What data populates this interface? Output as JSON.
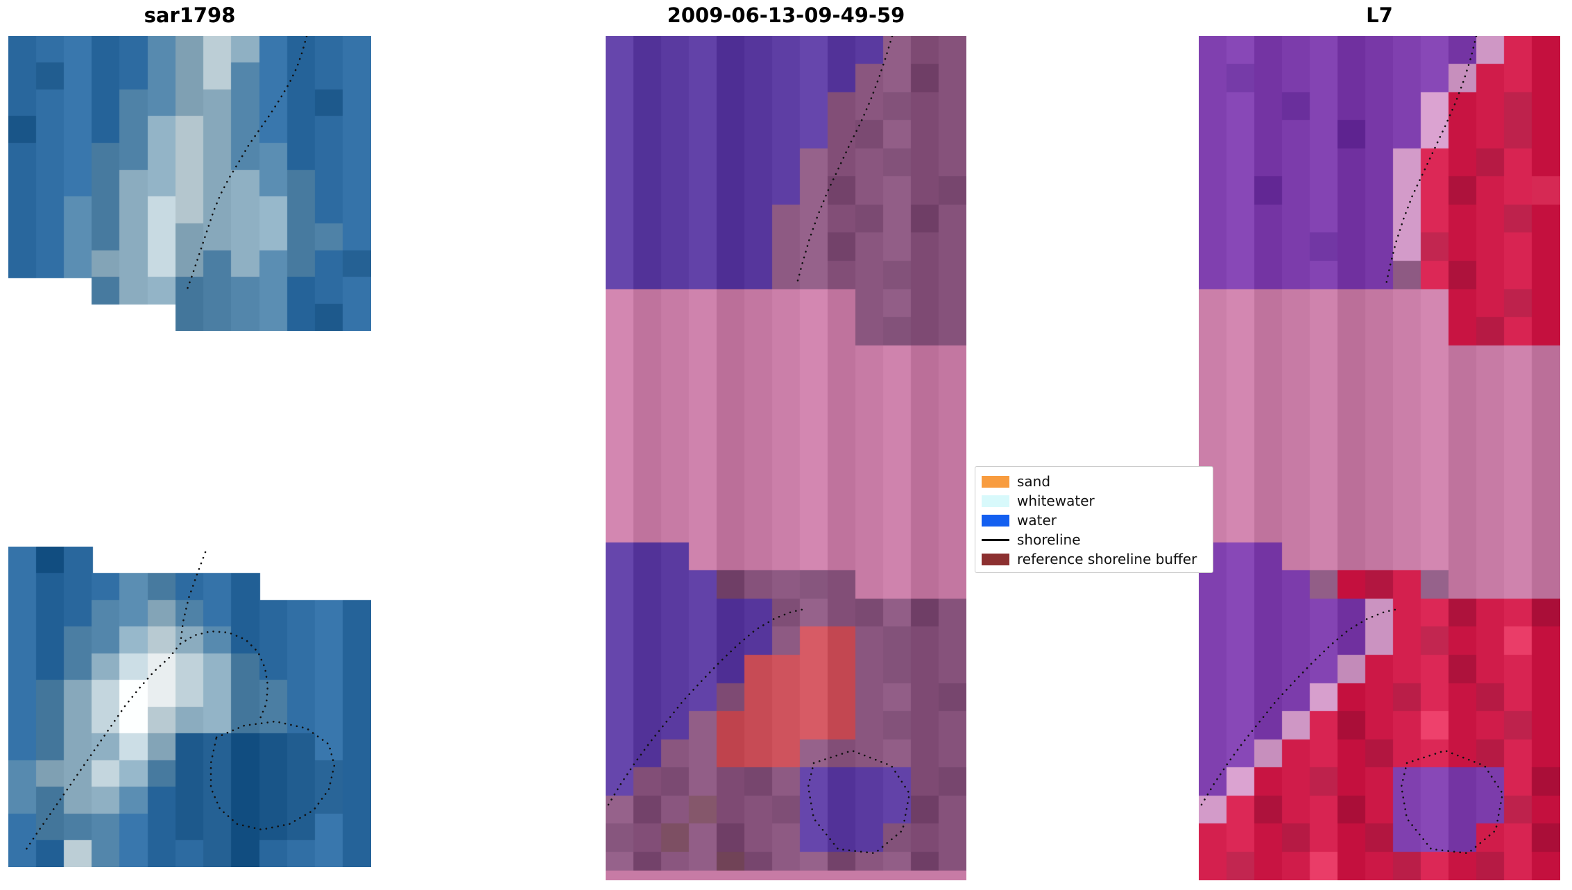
{
  "figure": {
    "background": "#ffffff",
    "titles": [
      {
        "text": "sar1798"
      },
      {
        "text": "2009-06-13-09-49-59"
      },
      {
        "text": "L7"
      }
    ]
  },
  "legend": {
    "items": [
      {
        "label": "sand",
        "swatch": "#f89c3f",
        "type": "patch"
      },
      {
        "label": "whitewater",
        "swatch": "#d8f9fb",
        "type": "patch"
      },
      {
        "label": "water",
        "swatch": "#135ff0",
        "type": "patch"
      },
      {
        "label": "shoreline",
        "swatch": "#000000",
        "type": "line"
      },
      {
        "label": "reference shoreline buffer",
        "swatch": "#8c3030",
        "type": "patch"
      }
    ]
  },
  "chart_data": {
    "type": "image-panels",
    "description": "Satellite shoreline-detection figure: SAR image chips (left), classified optical image (middle), Landsat 7 false-color image (right), with dotted detected shorelines.",
    "panel_titles": [
      "sar1798",
      "2009-06-13-09-49-59",
      "L7"
    ],
    "shoreline_style": {
      "color": "#111111",
      "dot_gap": 8.5,
      "dot_width": 2.6
    },
    "panels": {
      "sar_top": {
        "seed": 3,
        "palette": {
          "a": "#1d598c",
          "b": "#2d6ba1",
          "c": "#4f82a7",
          "d": "#8bacbf",
          "e": "#c0d2da",
          "w": "#f1f6f8"
        },
        "grid": [
          "bbbbbcdedbbbb",
          "babbbcdecbbbb",
          "bbbbccddcbbab",
          "abbbcdedcbbbb",
          "bbbccdedccbbb",
          "bbbcddeddccbb",
          "bbccdeedddcbb",
          "bbccdeddddccb",
          "bbcddedcdccba",
          "...cddccccbbb",
          "......ccccbab"
        ],
        "shorelines": [
          [
            [
              430,
              0
            ],
            [
              424,
              22
            ],
            [
              416,
              45
            ],
            [
              405,
              68
            ],
            [
              392,
              90
            ],
            [
              378,
              112
            ],
            [
              362,
              135
            ],
            [
              346,
              158
            ],
            [
              332,
              182
            ],
            [
              318,
              205
            ],
            [
              306,
              228
            ],
            [
              296,
              252
            ],
            [
              288,
              276
            ],
            [
              280,
              300
            ],
            [
              272,
              324
            ],
            [
              264,
              348
            ],
            [
              256,
              370
            ]
          ]
        ]
      },
      "sar_bottom": {
        "seed": 11,
        "palette": {
          "a": "#1d598c",
          "b": "#2d6ba1",
          "c": "#4f82a7",
          "d": "#8bacbf",
          "e": "#c0d2da",
          "w": "#f1f6f8"
        },
        "grid": [
          "bab..........",
          "bbbbccbbb....",
          "bbbccdcbbbbbb",
          "bbccdedcbbbbb",
          "bbcdewedcbbbb",
          "bcdewwedccbbb",
          "bcdeweddccbbb",
          "bcddedaaaaabb",
          "cddedcaaaaaab",
          "ccddcbaaaaaab",
          "bcccbbaaaaabb",
          "bbecbbbaabbbb"
        ],
        "shorelines": [
          [
            [
              284,
              8
            ],
            [
              272,
              40
            ],
            [
              260,
              74
            ],
            [
              252,
              108
            ],
            [
              248,
              140
            ],
            [
              232,
              160
            ],
            [
              210,
              180
            ],
            [
              188,
              205
            ],
            [
              168,
              230
            ],
            [
              150,
              256
            ],
            [
              132,
              282
            ],
            [
              114,
              308
            ],
            [
              96,
              334
            ],
            [
              78,
              360
            ],
            [
              60,
              386
            ],
            [
              42,
              412
            ],
            [
              26,
              436
            ]
          ],
          [
            [
              248,
              140
            ],
            [
              268,
              128
            ],
            [
              292,
              122
            ],
            [
              318,
              124
            ],
            [
              342,
              134
            ],
            [
              360,
              152
            ],
            [
              370,
              175
            ],
            [
              374,
              200
            ],
            [
              372,
              226
            ],
            [
              362,
              250
            ]
          ],
          [
            [
              300,
              275
            ],
            [
              340,
              258
            ],
            [
              385,
              252
            ],
            [
              430,
              262
            ],
            [
              462,
              285
            ],
            [
              470,
              315
            ],
            [
              462,
              350
            ],
            [
              440,
              380
            ],
            [
              405,
              400
            ],
            [
              365,
              408
            ],
            [
              330,
              400
            ],
            [
              305,
              378
            ],
            [
              292,
              348
            ],
            [
              292,
              312
            ],
            [
              300,
              275
            ]
          ]
        ]
      },
      "middle": {
        "seed": 23,
        "bottom_strip_color": "#c77ba5",
        "palette": {
          "P": "#5a3aa0",
          "M": "#8a567f",
          "N": "#7b4a72",
          "K": "#c77ba5",
          "R": "#cb4f59",
          "T": "#7d4f63"
        },
        "grid": [
          "PPPPPPPPPPMMM",
          "PPPPPPPPPMMNM",
          "PPPPPPPPMMNMM",
          "PPPPPPPPMNMMM",
          "PPPPPPPMMMNMM",
          "PPPPPPPMNMMMN",
          "PPPPPPMMMNMNM",
          "PPPPPPMMNMMMM",
          "PPPPPPMMMMNMM",
          "KKKKKKKKKMMMM",
          "KKKKKKKKKMNMM",
          "KKKKKKKKKKKKK",
          "KKKKKKKKKKKKK",
          "KKKKKKKKKKKKK",
          "KKKKKKKKKKKKK",
          "KKKKKKKKKKKKK",
          "KKKKKKKKKKKKK",
          "KKKKKKKKKKKKK",
          "PPPKKKKKKKKKK",
          "PPPPNMMNMKKKK",
          "PPPPPPNMMNMNM",
          "PPPPPPMRRMNMM",
          "PPPPPRRRRMNMM",
          "PPPPMRRRRMMMN",
          "PPPMRRRRRMNMM",
          "PPMMRRRMMMMMM",
          "PMNMMNMPPPPMN",
          "MNMTMMNPPPPNM",
          "NMTMNMMPPPNMM",
          "MNMMTNMMNMMNM"
        ],
        "shorelines": [
          [
            [
              413,
              0
            ],
            [
              404,
              30
            ],
            [
              394,
              60
            ],
            [
              382,
              92
            ],
            [
              368,
              124
            ],
            [
              352,
              156
            ],
            [
              336,
              190
            ],
            [
              320,
              224
            ],
            [
              306,
              258
            ],
            [
              294,
              292
            ],
            [
              284,
              326
            ],
            [
              276,
              356
            ]
          ],
          [
            [
              4,
              1108
            ],
            [
              22,
              1078
            ],
            [
              42,
              1048
            ],
            [
              64,
              1018
            ],
            [
              88,
              988
            ],
            [
              112,
              958
            ],
            [
              138,
              930
            ],
            [
              164,
              903
            ],
            [
              190,
              878
            ],
            [
              216,
              856
            ],
            [
              243,
              840
            ],
            [
              268,
              830
            ],
            [
              287,
              826
            ]
          ],
          [
            [
              300,
              1048
            ],
            [
              355,
              1030
            ],
            [
              412,
              1052
            ],
            [
              438,
              1092
            ],
            [
              428,
              1145
            ],
            [
              388,
              1178
            ],
            [
              335,
              1172
            ],
            [
              300,
              1128
            ],
            [
              292,
              1082
            ],
            [
              300,
              1048
            ]
          ]
        ]
      },
      "right": {
        "seed": 41,
        "palette": {
          "V": "#7c3cab",
          "U": "#6a2f9c",
          "L": "#cf97c5",
          "C": "#d01c4a",
          "D": "#b61a44",
          "E": "#e23560",
          "K": "#c77ba5",
          "M": "#8a567f"
        },
        "grid": [
          "VVVVVVVVVVLCC",
          "VUVVVVVVVLCCC",
          "VVVUVVVVLCCDC",
          "VVVVVUVVLCCDC",
          "VVVVVVVLCCDCC",
          "VVUVVVVLCDCCE",
          "VVVVVVVLCCCDC",
          "VVVVUVVLDCCCC",
          "VVVVVVVMCDCCC",
          "KKKKKKKKKCCDC",
          "KKKKKKKKKCDCC",
          "KKKKKKKKKKKKK",
          "KKKKKKKKKKKKK",
          "KKKKKKKKKKKKK",
          "KKKKKKKKKKKKK",
          "KKKKKKKKKKKKK",
          "KKKKKKKKKKKKK",
          "KKKKKKKKKKKKK",
          "VVVKKKKKKKKKK",
          "VVVVMCDCMKKKK",
          "VVVVVVLCCDCCD",
          "VVVVVVLCDCCEC",
          "VVVVVLCCCDCCC",
          "VVVVLCCDCCDCC",
          "VVVLCDCCECCDC",
          "VVLCCCDCCCDCC",
          "VLCCDCCVVVVCD",
          "LCDCCDCVVVVDC",
          "CCCDCCDVVVCCD",
          "CDCCECCDCCDCC"
        ],
        "shorelines": [
          [
            [
              400,
              0
            ],
            [
              392,
              32
            ],
            [
              382,
              64
            ],
            [
              370,
              96
            ],
            [
              356,
              128
            ],
            [
              340,
              162
            ],
            [
              324,
              196
            ],
            [
              308,
              230
            ],
            [
              295,
              264
            ],
            [
              284,
              298
            ],
            [
              276,
              330
            ],
            [
              270,
              358
            ]
          ],
          [
            [
              4,
              1108
            ],
            [
              22,
              1078
            ],
            [
              42,
              1048
            ],
            [
              64,
              1018
            ],
            [
              88,
              988
            ],
            [
              112,
              958
            ],
            [
              138,
              930
            ],
            [
              164,
              903
            ],
            [
              190,
              878
            ],
            [
              216,
              856
            ],
            [
              243,
              840
            ],
            [
              268,
              830
            ],
            [
              287,
              826
            ]
          ],
          [
            [
              300,
              1048
            ],
            [
              355,
              1030
            ],
            [
              412,
              1052
            ],
            [
              438,
              1092
            ],
            [
              428,
              1145
            ],
            [
              388,
              1178
            ],
            [
              335,
              1172
            ],
            [
              300,
              1128
            ],
            [
              292,
              1082
            ],
            [
              300,
              1048
            ]
          ]
        ]
      }
    }
  }
}
